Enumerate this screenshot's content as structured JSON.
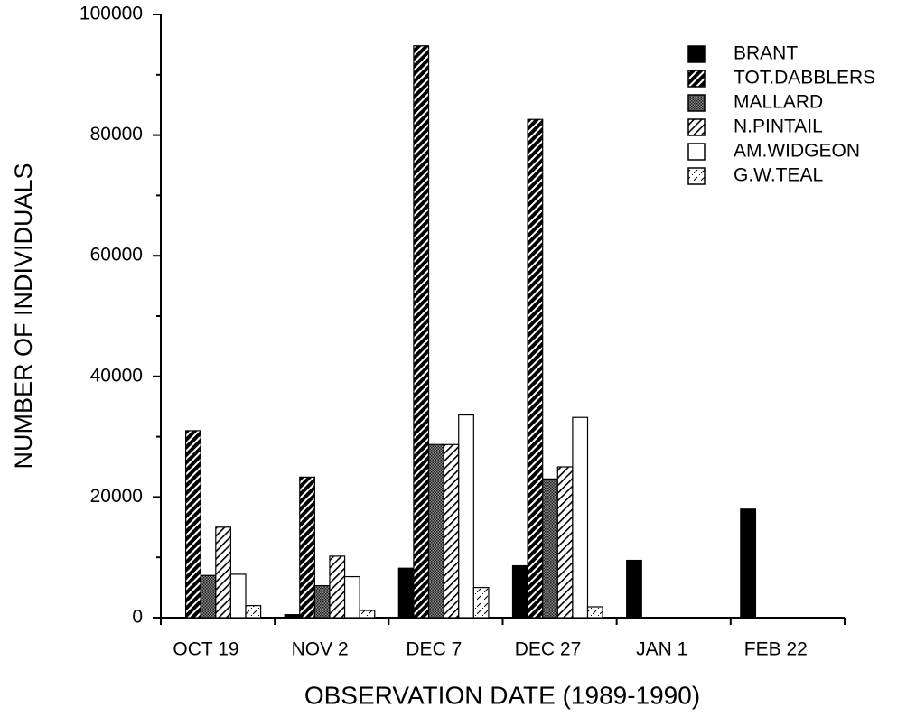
{
  "chart_data": {
    "type": "bar",
    "x_label": "OBSERVATION DATE (1989-1990)",
    "y_label": "NUMBER OF INDIVIDUALS",
    "categories": [
      "OCT 19",
      "NOV 2",
      "DEC 7",
      "DEC 27",
      "JAN 1",
      "FEB 22"
    ],
    "series": [
      {
        "name": "BRANT",
        "color": "#000000",
        "pattern": "solid",
        "values": [
          null,
          500,
          8200,
          8600,
          9500,
          18000
        ]
      },
      {
        "name": "TOT.DABBLERS",
        "color": "#000000",
        "pattern": "dense-hatch",
        "values": [
          31000,
          23300,
          94800,
          82600,
          null,
          null
        ]
      },
      {
        "name": "MALLARD",
        "color": "#000000",
        "pattern": "checker",
        "values": [
          7000,
          5300,
          28700,
          23000,
          null,
          null
        ]
      },
      {
        "name": "N.PINTAIL",
        "color": "#000000",
        "pattern": "light-hatch",
        "values": [
          15000,
          10200,
          28700,
          25000,
          null,
          null
        ]
      },
      {
        "name": "AM.WIDGEON",
        "color": "#000000",
        "pattern": "none",
        "values": [
          7200,
          6800,
          33600,
          33200,
          null,
          null
        ]
      },
      {
        "name": "G.W.TEAL",
        "color": "#000000",
        "pattern": "sparse",
        "values": [
          2000,
          1200,
          5000,
          1800,
          null,
          null
        ]
      }
    ],
    "ylim": [
      0,
      100000
    ],
    "yticks": [
      0,
      20000,
      40000,
      60000,
      80000,
      100000
    ],
    "yticks_minor": [
      10000,
      30000,
      50000,
      70000,
      90000
    ],
    "legend": "top-right"
  }
}
